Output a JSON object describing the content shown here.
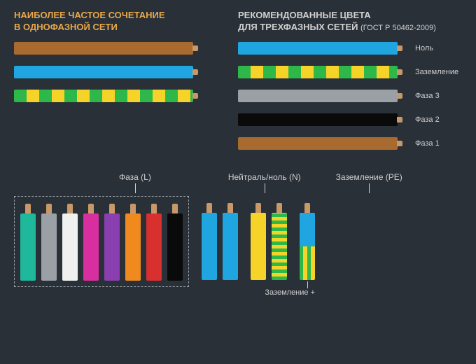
{
  "background_color": "#2a3038",
  "text_color": "#d0d0d0",
  "accent_title_color": "#e8a84a",
  "copper_tip_color": "#c89868",
  "dashed_border_color": "#9aa0a8",
  "titles": {
    "left_line1": "НАИБОЛЕЕ ЧАСТОЕ СОЧЕТАНИЕ",
    "left_line2": "В ОДНОФАЗНОЙ СЕТИ",
    "right_line1": "РЕКОМЕНДОВАННЫЕ ЦВЕТА",
    "right_line2": "ДЛЯ ТРЕХФАЗНЫХ СЕТЕЙ",
    "right_sub": "(ГОСТ Р 50462-2009)"
  },
  "left_cables": [
    {
      "type": "solid",
      "color": "#a86a2e"
    },
    {
      "type": "solid",
      "color": "#1fa6e0"
    },
    {
      "type": "striped",
      "c1": "#2fb84a",
      "c2": "#f6d328"
    }
  ],
  "right_cables": [
    {
      "type": "solid",
      "color": "#1fa6e0",
      "label": "Ноль"
    },
    {
      "type": "striped",
      "c1": "#2fb84a",
      "c2": "#f6d328",
      "label": "Заземление"
    },
    {
      "type": "solid",
      "color": "#9aa0a6",
      "label": "Фаза 3"
    },
    {
      "type": "solid",
      "color": "#0a0a0a",
      "label": "Фаза 2"
    },
    {
      "type": "solid",
      "color": "#a86a2e",
      "label": "Фаза 1"
    }
  ],
  "bottom_labels": {
    "phase": "Фаза (L)",
    "neutral": "Нейтраль/ноль (N)",
    "ground": "Заземление (PE)",
    "ground_plus": "Заземление +"
  },
  "phase_colors": [
    "#1fb89a",
    "#9aa0a6",
    "#f0f0f0",
    "#d82fa0",
    "#8a3fb0",
    "#f08a1f",
    "#d82f2f",
    "#0a0a0a"
  ],
  "neutral_colors": [
    "#1fa6e0",
    "#1fa6e0"
  ],
  "ground_cables": [
    {
      "type": "solid",
      "color": "#f6d328"
    },
    {
      "type": "vstriped",
      "c1": "#2fb84a",
      "c2": "#f6d328"
    }
  ],
  "ground_plus": {
    "top_color": "#1fa6e0",
    "bottom_c1": "#2fb84a",
    "bottom_c2": "#f6d328"
  }
}
